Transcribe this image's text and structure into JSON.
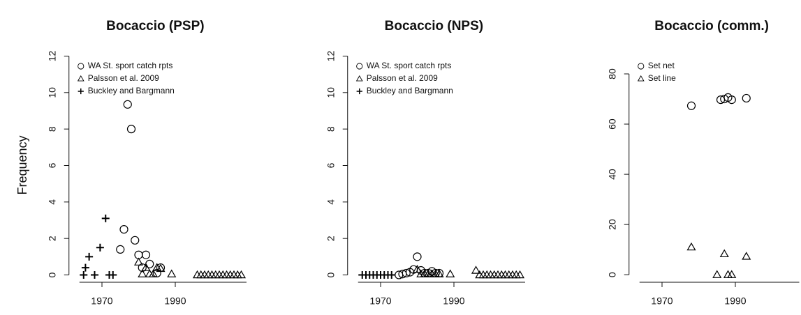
{
  "chart_data": [
    {
      "type": "scatter",
      "title": "Bocaccio (PSP)",
      "ylabel": "Frequency",
      "xlim": [
        1961,
        2010
      ],
      "xticks": [
        1970,
        1990
      ],
      "ylim": [
        -0.4,
        12.4
      ],
      "yticks": [
        0,
        2,
        4,
        6,
        8,
        10,
        12
      ],
      "legend": "topleft",
      "series": [
        {
          "name": "WA St. sport catch rpts",
          "marker": "circle",
          "color": "#000000",
          "x": [
            1975,
            1976,
            1977,
            1978,
            1979,
            1980,
            1981,
            1982,
            1983,
            1985,
            1986
          ],
          "values": [
            1.4,
            2.5,
            9.35,
            8.0,
            1.9,
            1.1,
            0.4,
            1.1,
            0.6,
            0.1,
            0.4
          ]
        },
        {
          "name": "Palsson et al. 2009",
          "marker": "triangle",
          "color": "#000000",
          "x": [
            1980,
            1981,
            1982,
            1983,
            1984,
            1985,
            1986,
            1989,
            1996,
            1997,
            1998,
            1999,
            2000,
            2001,
            2002,
            2003,
            2004,
            2005,
            2006,
            2007,
            2008
          ],
          "values": [
            0.7,
            0.05,
            0.4,
            0.05,
            0.05,
            0.4,
            0.35,
            0.05,
            0,
            0,
            0,
            0,
            0,
            0,
            0,
            0,
            0,
            0,
            0,
            0,
            0
          ]
        },
        {
          "name": "Buckley and Bargmann",
          "marker": "plus",
          "color": "#000000",
          "x": [
            1965,
            1965.5,
            1966.5,
            1968,
            1969.5,
            1971,
            1972,
            1973
          ],
          "values": [
            0,
            0.4,
            1.0,
            0,
            1.5,
            3.1,
            0,
            0
          ]
        }
      ]
    },
    {
      "type": "scatter",
      "title": "Bocaccio (NPS)",
      "xlim": [
        1961,
        2010
      ],
      "xticks": [
        1970,
        1990
      ],
      "ylim": [
        -0.4,
        12.4
      ],
      "yticks": [
        0,
        2,
        4,
        6,
        8,
        10,
        12
      ],
      "legend": "topleft",
      "series": [
        {
          "name": "WA St. sport catch rpts",
          "marker": "circle",
          "color": "#000000",
          "x": [
            1975,
            1976,
            1977,
            1978,
            1979,
            1980,
            1981,
            1982,
            1983,
            1984,
            1985,
            1986
          ],
          "values": [
            0,
            0.05,
            0.1,
            0.15,
            0.3,
            1.0,
            0.25,
            0.1,
            0.1,
            0.2,
            0.1,
            0.1
          ]
        },
        {
          "name": "Palsson et al. 2009",
          "marker": "triangle",
          "color": "#000000",
          "x": [
            1980,
            1981,
            1982,
            1983,
            1984,
            1985,
            1986,
            1989,
            1996,
            1997,
            1998,
            1999,
            2000,
            2001,
            2002,
            2003,
            2004,
            2005,
            2006,
            2007,
            2008
          ],
          "values": [
            0.3,
            0.05,
            0.05,
            0.05,
            0.05,
            0.05,
            0.05,
            0.05,
            0.25,
            0,
            0,
            0,
            0,
            0,
            0,
            0,
            0,
            0,
            0,
            0,
            0
          ]
        },
        {
          "name": "Buckley and Bargmann",
          "marker": "plus",
          "color": "#000000",
          "x": [
            1965,
            1966,
            1967,
            1968,
            1969,
            1970,
            1971,
            1972,
            1973
          ],
          "values": [
            0,
            0,
            0,
            0,
            0,
            0,
            0,
            0,
            0
          ]
        }
      ]
    },
    {
      "type": "scatter",
      "title": "Bocaccio (comm.)",
      "xlim": [
        1961,
        2008
      ],
      "xticks": [
        1970,
        1990
      ],
      "ylim": [
        -3,
        90
      ],
      "yticks": [
        0,
        20,
        40,
        60,
        80
      ],
      "legend": "topleft",
      "series": [
        {
          "name": "Set net",
          "marker": "circle",
          "color": "#000000",
          "x": [
            1978,
            1986,
            1987,
            1988,
            1989,
            1993
          ],
          "values": [
            67.3,
            69.7,
            70.0,
            70.6,
            69.7,
            70.3
          ]
        },
        {
          "name": "Set line",
          "marker": "triangle",
          "color": "#000000",
          "x": [
            1978,
            1985,
            1987,
            1988,
            1989,
            1993
          ],
          "values": [
            11,
            0,
            8.3,
            0,
            0,
            7.3
          ]
        }
      ]
    }
  ]
}
